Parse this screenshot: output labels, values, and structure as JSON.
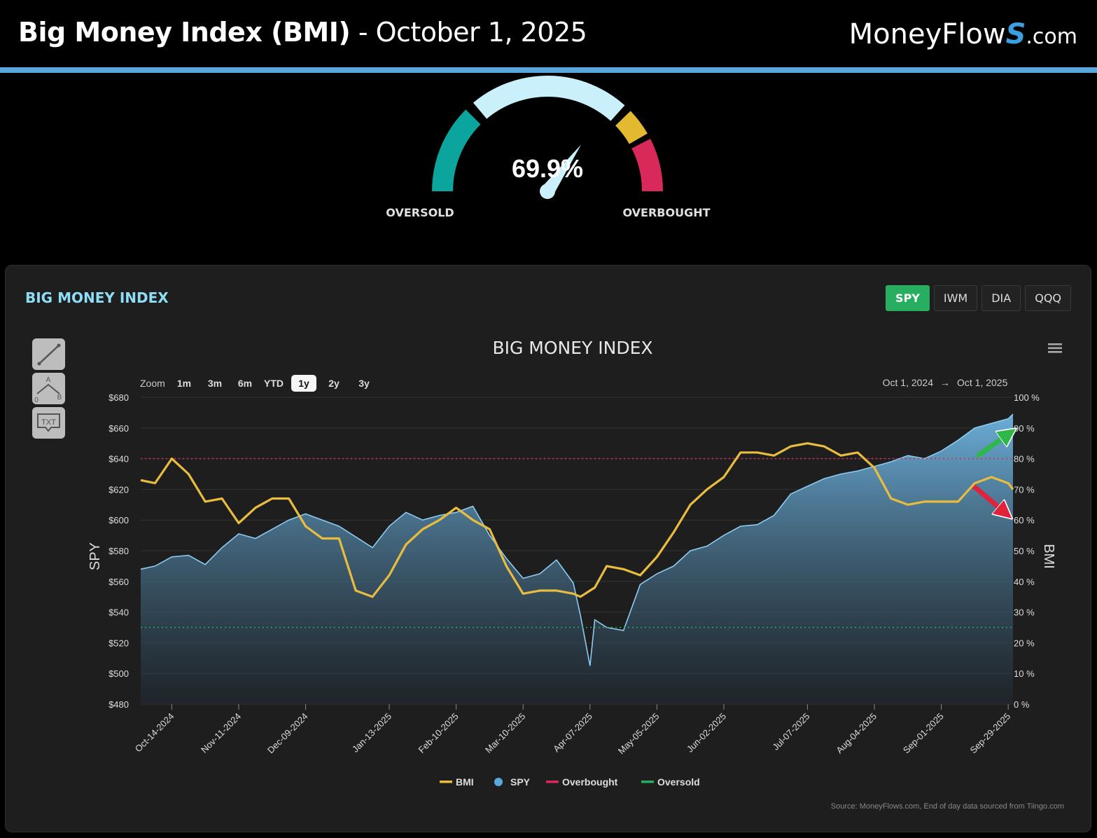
{
  "header": {
    "title": "Big Money Index (BMI)",
    "separator": " - ",
    "date": "October 1, 2025",
    "brand_left": "MoneyFlow",
    "brand_s": "S",
    "brand_right": ".com"
  },
  "gauge": {
    "value_label": "69.9%",
    "value": 69.9,
    "oversold_label": "OVERSOLD",
    "overbought_label": "OVERBOUGHT",
    "colors": {
      "oversold": "#0ba59d",
      "neutral": "#c9f0fb",
      "warning": "#e3b930",
      "overbought": "#d9295a"
    }
  },
  "panel": {
    "title": "BIG MONEY INDEX",
    "index_buttons": [
      {
        "label": "SPY",
        "active": true
      },
      {
        "label": "IWM",
        "active": false
      },
      {
        "label": "DIA",
        "active": false
      },
      {
        "label": "QQQ",
        "active": false
      }
    ],
    "tools": [
      {
        "name": "line-tool-icon"
      },
      {
        "name": "measure-tool-icon",
        "labels": [
          "A",
          "0",
          "B"
        ]
      },
      {
        "name": "text-tool-icon",
        "label": "TXT"
      }
    ],
    "zoom": {
      "label": "Zoom",
      "options": [
        "1m",
        "3m",
        "6m",
        "YTD",
        "1y",
        "2y",
        "3y"
      ],
      "selected": "1y"
    },
    "range": {
      "from": "Oct 1, 2024",
      "arrow": "→",
      "to": "Oct 1, 2025"
    },
    "source": "Source: MoneyFlows.com, End of day data sourced from Tiingo.com",
    "menu_icon": "hamburger-menu-icon"
  },
  "chart_data": {
    "type": "line",
    "title": "BIG MONEY INDEX",
    "left_axis": {
      "label": "SPY",
      "min": 480,
      "max": 680,
      "ticks": [
        "$680",
        "$660",
        "$640",
        "$620",
        "$600",
        "$580",
        "$560",
        "$540",
        "$520",
        "$500",
        "$480"
      ]
    },
    "right_axis": {
      "label": "BMI",
      "min": 0,
      "max": 100,
      "ticks": [
        "100 %",
        "90 %",
        "80 %",
        "70 %",
        "60 %",
        "50 %",
        "40 %",
        "30 %",
        "20 %",
        "10 %",
        "0 %"
      ]
    },
    "x_ticks": [
      "Oct-14-2024",
      "Nov-11-2024",
      "Dec-09-2024",
      "Jan-13-2025",
      "Feb-10-2025",
      "Mar-10-2025",
      "Apr-07-2025",
      "May-05-2025",
      "Jun-02-2025",
      "Jul-07-2025",
      "Aug-04-2025",
      "Sep-01-2025",
      "Sep-29-2025"
    ],
    "x_range": [
      "2024-10-01",
      "2025-10-01"
    ],
    "overbought_level": 80,
    "oversold_level": 25,
    "legend_position": "bottom-center",
    "legend": [
      {
        "name": "BMI",
        "color": "#e8bd3f",
        "marker": "line"
      },
      {
        "name": "SPY",
        "color": "#5aa9dc",
        "marker": "dot"
      },
      {
        "name": "Overbought",
        "color": "#d9295a",
        "marker": "line"
      },
      {
        "name": "Oversold",
        "color": "#27ae60",
        "marker": "line"
      }
    ],
    "series": [
      {
        "name": "SPY",
        "axis": "left",
        "type": "area",
        "color": "#5aa9dc",
        "x": [
          "2024-10-01",
          "2024-10-07",
          "2024-10-14",
          "2024-10-21",
          "2024-10-28",
          "2024-11-04",
          "2024-11-11",
          "2024-11-18",
          "2024-11-25",
          "2024-12-02",
          "2024-12-09",
          "2024-12-16",
          "2024-12-23",
          "2024-12-30",
          "2025-01-06",
          "2025-01-13",
          "2025-01-20",
          "2025-01-27",
          "2025-02-03",
          "2025-02-10",
          "2025-02-17",
          "2025-02-24",
          "2025-03-03",
          "2025-03-10",
          "2025-03-17",
          "2025-03-24",
          "2025-03-31",
          "2025-04-03",
          "2025-04-07",
          "2025-04-09",
          "2025-04-14",
          "2025-04-21",
          "2025-04-28",
          "2025-05-05",
          "2025-05-12",
          "2025-05-19",
          "2025-05-26",
          "2025-06-02",
          "2025-06-09",
          "2025-06-16",
          "2025-06-23",
          "2025-06-30",
          "2025-07-07",
          "2025-07-14",
          "2025-07-21",
          "2025-07-28",
          "2025-08-04",
          "2025-08-11",
          "2025-08-18",
          "2025-08-25",
          "2025-09-01",
          "2025-09-08",
          "2025-09-15",
          "2025-09-22",
          "2025-09-29",
          "2025-10-01"
        ],
        "values": [
          568,
          570,
          576,
          577,
          571,
          582,
          591,
          588,
          594,
          600,
          604,
          600,
          596,
          589,
          582,
          596,
          605,
          600,
          603,
          605,
          609,
          590,
          575,
          562,
          565,
          574,
          559,
          538,
          505,
          535,
          530,
          528,
          558,
          565,
          570,
          580,
          583,
          590,
          596,
          597,
          603,
          617,
          622,
          627,
          630,
          632,
          635,
          638,
          642,
          640,
          645,
          652,
          660,
          663,
          666,
          669
        ]
      },
      {
        "name": "BMI",
        "axis": "right",
        "type": "line",
        "color": "#e8bd3f",
        "x": [
          "2024-10-01",
          "2024-10-07",
          "2024-10-14",
          "2024-10-21",
          "2024-10-28",
          "2024-11-04",
          "2024-11-11",
          "2024-11-18",
          "2024-11-25",
          "2024-12-02",
          "2024-12-09",
          "2024-12-16",
          "2024-12-23",
          "2024-12-30",
          "2025-01-06",
          "2025-01-13",
          "2025-01-20",
          "2025-01-27",
          "2025-02-03",
          "2025-02-10",
          "2025-02-17",
          "2025-02-24",
          "2025-03-03",
          "2025-03-10",
          "2025-03-17",
          "2025-03-24",
          "2025-03-31",
          "2025-04-03",
          "2025-04-07",
          "2025-04-09",
          "2025-04-14",
          "2025-04-21",
          "2025-04-28",
          "2025-05-05",
          "2025-05-12",
          "2025-05-19",
          "2025-05-26",
          "2025-06-02",
          "2025-06-09",
          "2025-06-16",
          "2025-06-23",
          "2025-06-30",
          "2025-07-07",
          "2025-07-14",
          "2025-07-21",
          "2025-07-28",
          "2025-08-04",
          "2025-08-11",
          "2025-08-18",
          "2025-08-25",
          "2025-09-01",
          "2025-09-08",
          "2025-09-15",
          "2025-09-22",
          "2025-09-29",
          "2025-10-01"
        ],
        "values": [
          73,
          72,
          80,
          75,
          66,
          67,
          59,
          64,
          67,
          67,
          58,
          54,
          54,
          37,
          35,
          42,
          52,
          57,
          60,
          64,
          60,
          57,
          45,
          36,
          37,
          37,
          36,
          35,
          37,
          38,
          45,
          44,
          42,
          48,
          56,
          65,
          70,
          74,
          82,
          82,
          81,
          84,
          85,
          84,
          81,
          82,
          77,
          67,
          65,
          66,
          66,
          66,
          72,
          74,
          72,
          70
        ]
      }
    ],
    "annotations": [
      {
        "type": "arrow",
        "color": "#2fb84a",
        "direction": "up-right",
        "series": "SPY"
      },
      {
        "type": "arrow",
        "color": "#e0223a",
        "direction": "down-right",
        "series": "BMI"
      }
    ]
  }
}
